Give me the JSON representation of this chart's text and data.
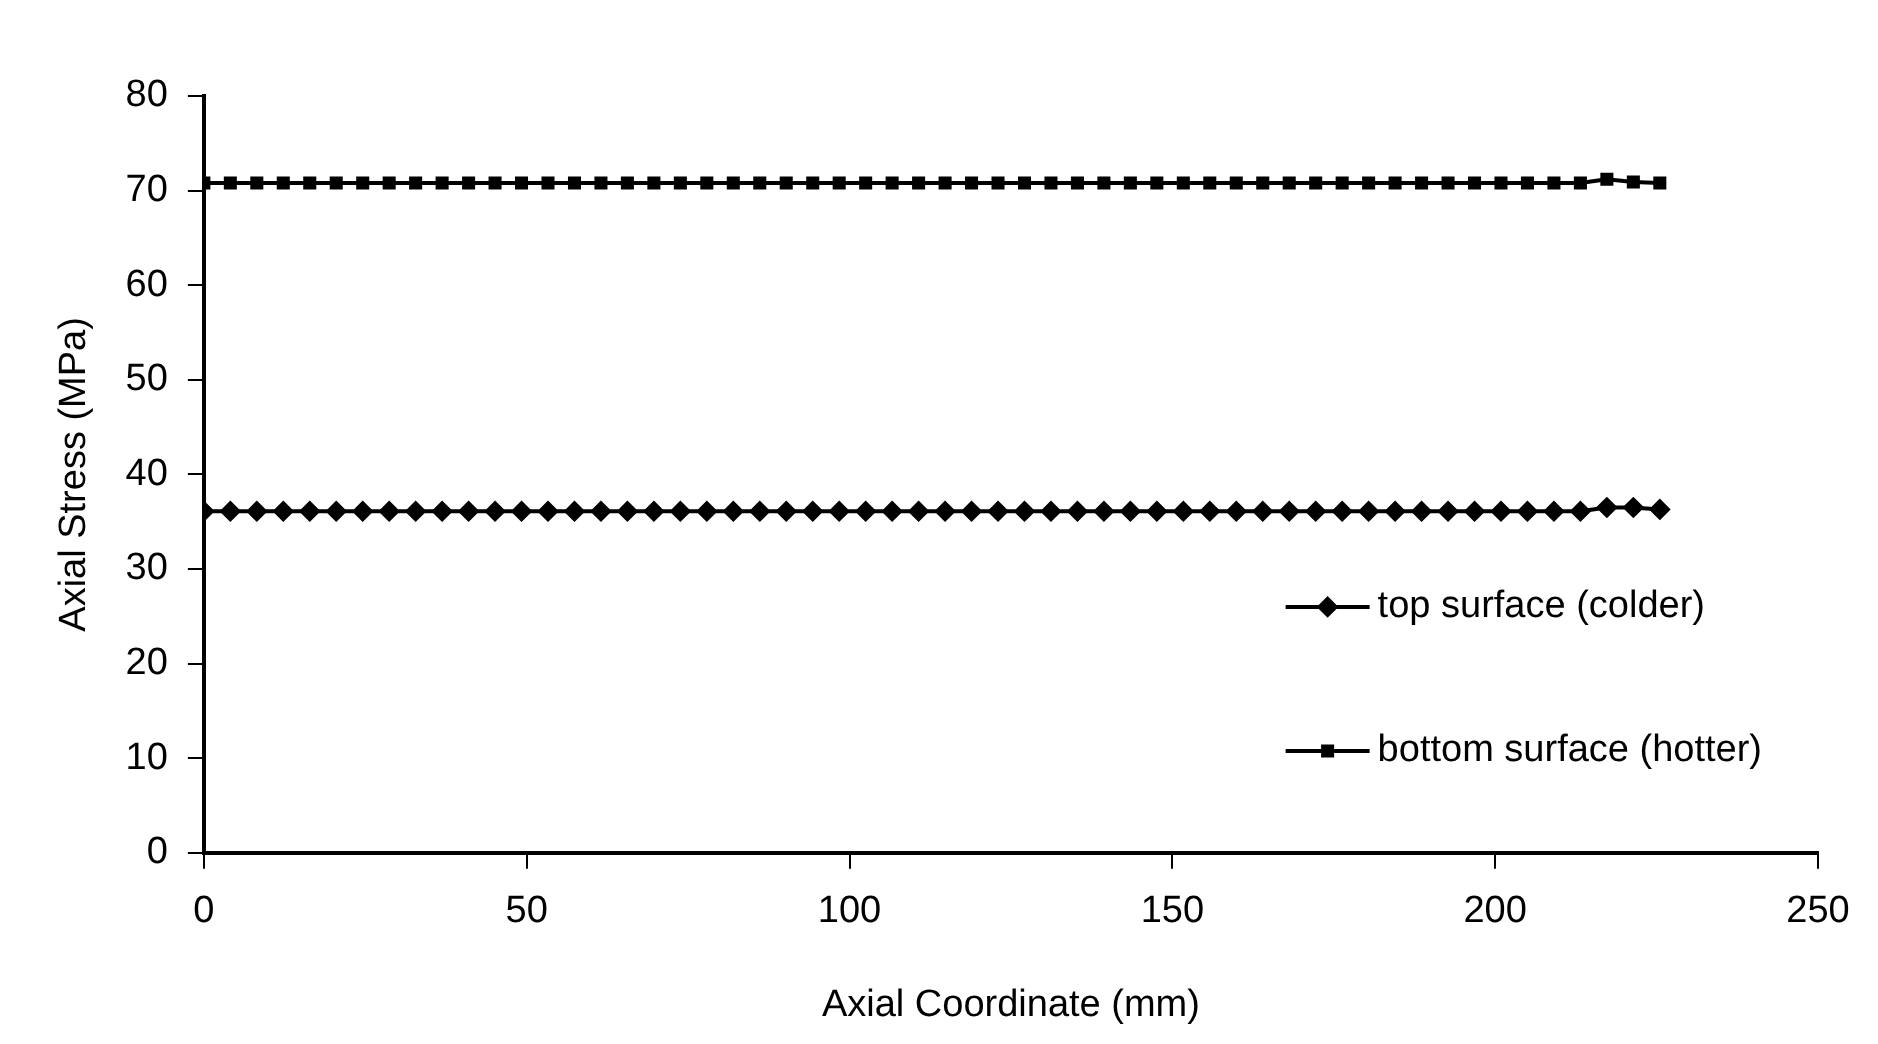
{
  "chart_data": {
    "type": "line",
    "xlabel": "Axial Coordinate (mm)",
    "ylabel": "Axial Stress (MPa)",
    "x": [
      0,
      4.1,
      8.2,
      12.3,
      16.4,
      20.5,
      24.6,
      28.7,
      32.8,
      36.9,
      41,
      45.1,
      49.2,
      53.3,
      57.4,
      61.5,
      65.6,
      69.7,
      73.8,
      77.9,
      82,
      86.1,
      90.2,
      94.3,
      98.4,
      102.5,
      106.6,
      110.7,
      114.8,
      118.9,
      123,
      127.1,
      131.2,
      135.3,
      139.4,
      143.5,
      147.6,
      151.7,
      155.8,
      159.9,
      164,
      168.1,
      172.2,
      176.3,
      180.4,
      184.5,
      188.6,
      192.7,
      196.8,
      200.9,
      205,
      209.1,
      213.2,
      217.3,
      221.4,
      225.5
    ],
    "series": [
      {
        "name": "top surface (colder)",
        "color": "#000000",
        "marker": "diamond",
        "values": [
          36.1,
          36.1,
          36.1,
          36.1,
          36.1,
          36.1,
          36.1,
          36.1,
          36.1,
          36.1,
          36.1,
          36.1,
          36.1,
          36.1,
          36.1,
          36.1,
          36.1,
          36.1,
          36.1,
          36.1,
          36.1,
          36.1,
          36.1,
          36.1,
          36.1,
          36.1,
          36.1,
          36.1,
          36.1,
          36.1,
          36.1,
          36.1,
          36.1,
          36.1,
          36.1,
          36.1,
          36.1,
          36.1,
          36.1,
          36.1,
          36.1,
          36.1,
          36.1,
          36.1,
          36.1,
          36.1,
          36.1,
          36.1,
          36.1,
          36.1,
          36.1,
          36.1,
          36.1,
          36.5,
          36.5,
          36.3
        ]
      },
      {
        "name": "bottom surface (hotter)",
        "color": "#000000",
        "marker": "square",
        "values": [
          70.8,
          70.8,
          70.8,
          70.8,
          70.8,
          70.8,
          70.8,
          70.8,
          70.8,
          70.8,
          70.8,
          70.8,
          70.8,
          70.8,
          70.8,
          70.8,
          70.8,
          70.8,
          70.8,
          70.8,
          70.8,
          70.8,
          70.8,
          70.8,
          70.8,
          70.8,
          70.8,
          70.8,
          70.8,
          70.8,
          70.8,
          70.8,
          70.8,
          70.8,
          70.8,
          70.8,
          70.8,
          70.8,
          70.8,
          70.8,
          70.8,
          70.8,
          70.8,
          70.8,
          70.8,
          70.8,
          70.8,
          70.8,
          70.8,
          70.8,
          70.8,
          70.8,
          70.8,
          71.2,
          70.9,
          70.8
        ]
      }
    ],
    "xlim": [
      0,
      250
    ],
    "xticks": [
      0,
      50,
      100,
      150,
      200,
      250
    ],
    "ylim": [
      0,
      80
    ],
    "yticks": [
      0,
      10,
      20,
      30,
      40,
      50,
      60,
      70,
      80
    ],
    "grid": false,
    "legend": "right",
    "line_style": "solid"
  }
}
